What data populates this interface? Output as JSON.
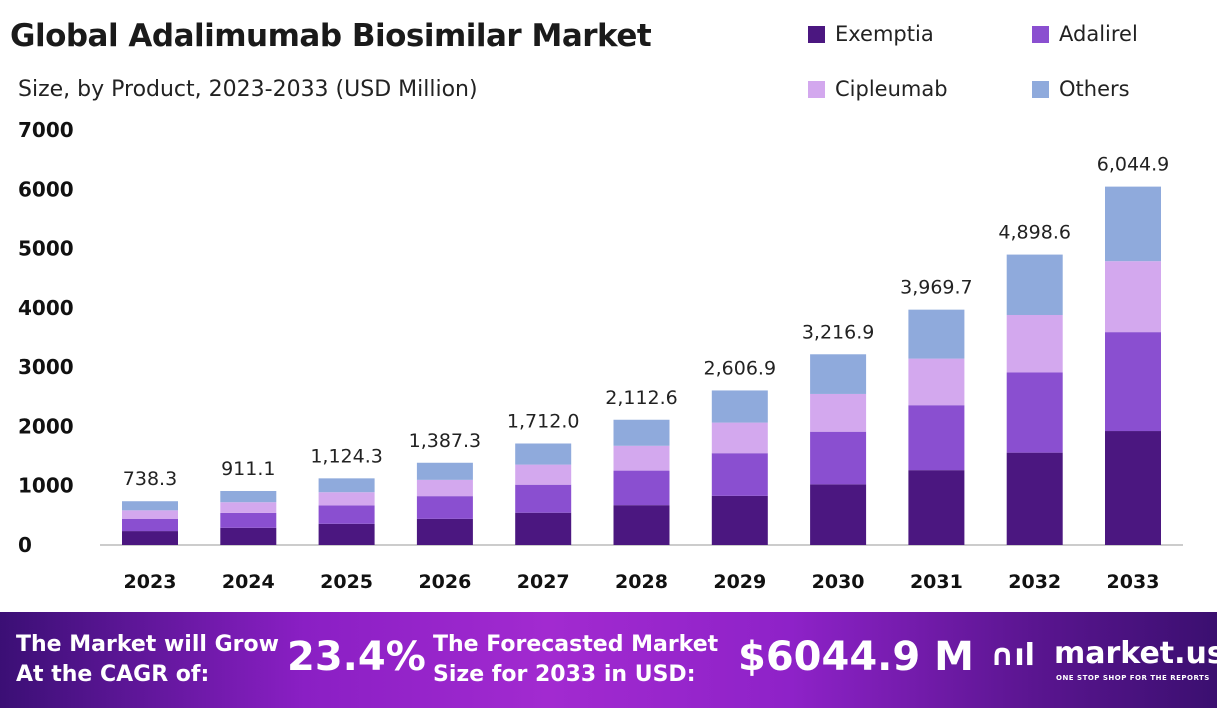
{
  "chart_data": {
    "type": "bar",
    "stacked": true,
    "title": "Global Adalimumab Biosimilar Market",
    "subtitle": "Size, by Product, 2023-2033 (USD Million)",
    "categories": [
      "2023",
      "2024",
      "2025",
      "2026",
      "2027",
      "2028",
      "2029",
      "2030",
      "2031",
      "2032",
      "2033"
    ],
    "series": [
      {
        "name": "Exemptia",
        "color": "#4b1780",
        "values": [
          234.8,
          289.7,
          357.5,
          441.2,
          544.4,
          671.8,
          829.0,
          1023.0,
          1262.4,
          1557.8,
          1922.3
        ]
      },
      {
        "name": "Adalirel",
        "color": "#8a4fd0",
        "values": [
          203.8,
          251.5,
          310.3,
          382.9,
          472.5,
          583.1,
          719.5,
          887.9,
          1095.6,
          1352.0,
          1668.4
        ]
      },
      {
        "name": "Cipleumab",
        "color": "#d3a8ee",
        "values": [
          146.2,
          180.4,
          222.6,
          274.7,
          339.0,
          418.3,
          516.2,
          636.9,
          786.0,
          969.9,
          1196.9
        ]
      },
      {
        "name": "Others",
        "color": "#8faadc",
        "values": [
          153.5,
          189.5,
          233.9,
          288.5,
          356.1,
          439.4,
          542.2,
          669.1,
          825.7,
          1018.9,
          1257.3
        ]
      }
    ],
    "totals_labels": [
      "738.3",
      "911.1",
      "1,124.3",
      "1,387.3",
      "1,712.0",
      "2,112.6",
      "2,606.9",
      "3,216.9",
      "3,969.7",
      "4,898.6",
      "6,044.9"
    ],
    "yticks": [
      "0",
      "1000",
      "2000",
      "3000",
      "4000",
      "5000",
      "6000",
      "7000"
    ],
    "ylim": [
      0,
      7000
    ],
    "grid": false,
    "legend_position": "top-right"
  },
  "footer": {
    "cagr_text_1": "The Market will Grow",
    "cagr_text_2": "At the CAGR of:",
    "cagr_value": "23.4%",
    "forecast_text_1": "The Forecasted Market",
    "forecast_text_2": "Size for 2033 in USD:",
    "forecast_value": "$6044.9 M",
    "logo_name": "market.us",
    "logo_tagline": "ONE STOP SHOP FOR THE REPORTS"
  }
}
